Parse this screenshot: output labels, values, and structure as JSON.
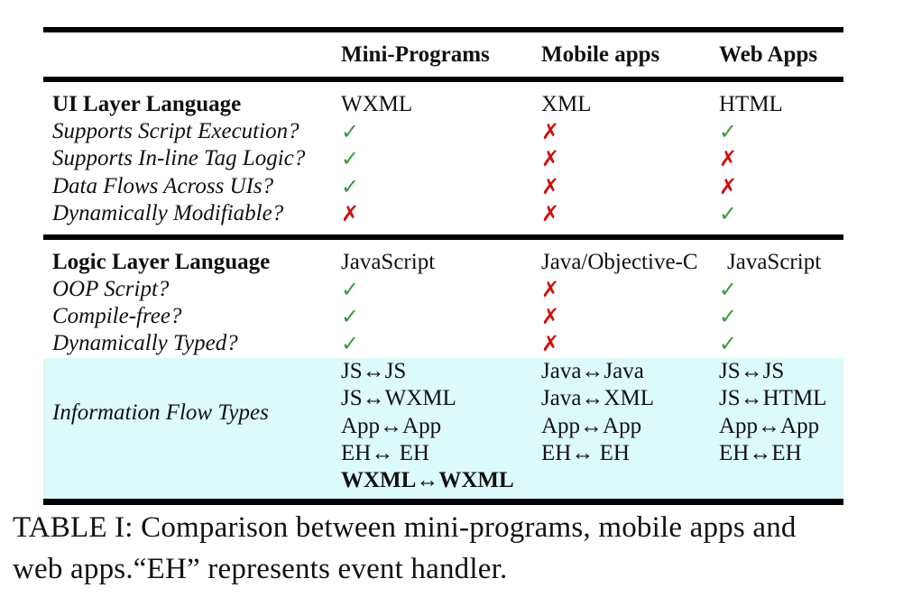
{
  "table": {
    "headers": [
      "",
      "Mini-Programs",
      "Mobile apps",
      "Web Apps"
    ],
    "ui_section": {
      "title": "UI Layer Language",
      "languages": [
        "WXML",
        "XML",
        "HTML"
      ],
      "rows": [
        {
          "label": "Supports Script Execution?",
          "values": [
            "✓",
            "✗",
            "✓"
          ]
        },
        {
          "label": "Supports In-line Tag Logic?",
          "values": [
            "✓",
            "✗",
            "✗"
          ]
        },
        {
          "label": "Data Flows Across UIs?",
          "values": [
            "✓",
            "✗",
            "✗"
          ]
        },
        {
          "label": "Dynamically Modifiable?",
          "values": [
            "✗",
            "✗",
            "✓"
          ]
        }
      ]
    },
    "logic_section": {
      "title": "Logic Layer Language",
      "languages": [
        "JavaScript",
        "Java/Objective-C",
        "JavaScript"
      ],
      "rows": [
        {
          "label": "OOP Script?",
          "values": [
            "✓",
            "✗",
            "✓"
          ]
        },
        {
          "label": "Compile-free?",
          "values": [
            "✓",
            "✗",
            "✓"
          ]
        },
        {
          "label": "Dynamically Typed?",
          "values": [
            "✓",
            "✗",
            "✓"
          ]
        }
      ]
    },
    "info_flow": {
      "label": "Information Flow Types",
      "mini_programs": [
        "JS↔JS",
        "JS↔WXML",
        "App↔App",
        "EH↔ EH",
        "WXML↔WXML"
      ],
      "mobile_apps": [
        "Java↔Java",
        "Java↔XML",
        "App↔App",
        "EH↔ EH"
      ],
      "web_apps": [
        "JS↔JS",
        "JS↔HTML",
        "App↔App",
        "EH↔EH"
      ]
    }
  },
  "caption_line1": "TABLE I: Comparison between mini-programs, mobile apps and",
  "caption_line2": "web apps.“EH” represents event handler.",
  "colors": {
    "check": "#3a9a3a",
    "cross": "#cc1111",
    "highlight_bg": "#dcfafa"
  }
}
